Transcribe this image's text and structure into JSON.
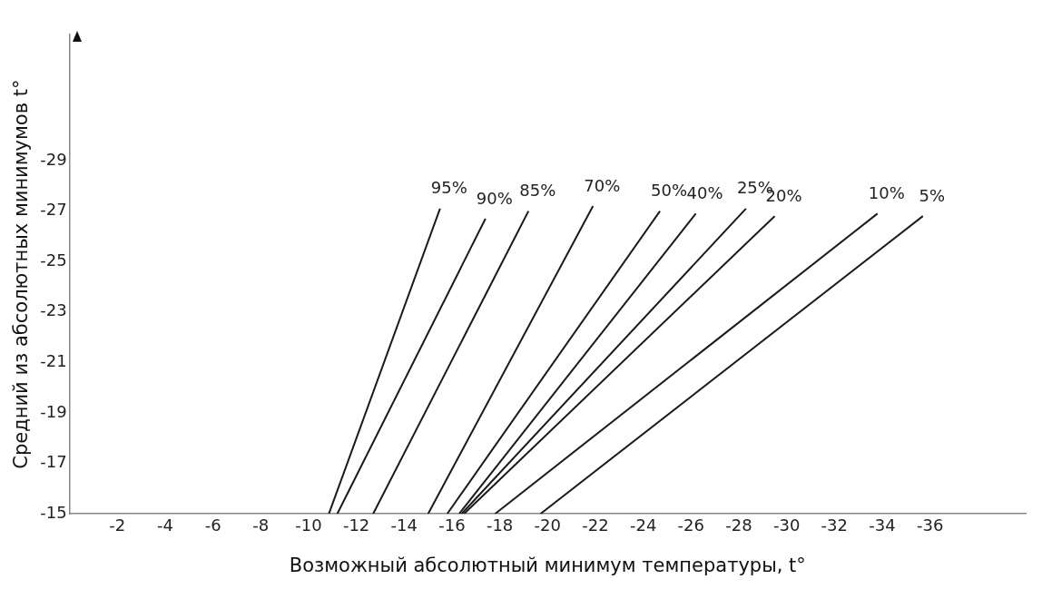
{
  "chart_data": {
    "type": "line",
    "xlabel": "Возможный абсолютный минимум температуры, t°",
    "ylabel": "Средний из абсолютных минимумов t°",
    "xlim": [
      0,
      -40
    ],
    "xticks": [
      -2,
      -4,
      -6,
      -8,
      -10,
      -12,
      -14,
      -16,
      -18,
      -20,
      -22,
      -24,
      -26,
      -28,
      -30,
      -32,
      -34,
      -36
    ],
    "ylim": [
      -15,
      -34
    ],
    "yticks": [
      -15,
      -17,
      -19,
      -21,
      -23,
      -25,
      -27,
      -29
    ],
    "grid": false,
    "legend": false,
    "marker": "none",
    "line_style": "solid",
    "series": [
      {
        "name": "95%",
        "color": "#1a1a1a",
        "x": [
          -10.85,
          -15.5
        ],
        "values": [
          -15,
          -27.1
        ]
      },
      {
        "name": "90%",
        "color": "#1a1a1a",
        "x": [
          -11.2,
          -17.4
        ],
        "values": [
          -15,
          -26.7
        ]
      },
      {
        "name": "85%",
        "color": "#1a1a1a",
        "x": [
          -12.7,
          -19.2
        ],
        "values": [
          -15,
          -27
        ]
      },
      {
        "name": "70%",
        "color": "#1a1a1a",
        "x": [
          -15,
          -21.9
        ],
        "values": [
          -15,
          -27.2
        ]
      },
      {
        "name": "50%",
        "color": "#1a1a1a",
        "x": [
          -15.8,
          -24.7
        ],
        "values": [
          -15,
          -27
        ]
      },
      {
        "name": "40%",
        "color": "#1a1a1a",
        "x": [
          -16.3,
          -26.2
        ],
        "values": [
          -15,
          -26.9
        ]
      },
      {
        "name": "25%",
        "color": "#1a1a1a",
        "x": [
          -16.4,
          -28.3
        ],
        "values": [
          -15,
          -27.1
        ]
      },
      {
        "name": "20%",
        "color": "#1a1a1a",
        "x": [
          -16.5,
          -29.5
        ],
        "values": [
          -15,
          -26.8
        ]
      },
      {
        "name": "10%",
        "color": "#1a1a1a",
        "x": [
          -17.8,
          -33.8
        ],
        "values": [
          -15,
          -26.9
        ]
      },
      {
        "name": "5%",
        "color": "#1a1a1a",
        "x": [
          -19.7,
          -35.7
        ],
        "values": [
          -15,
          -26.8
        ]
      }
    ]
  }
}
